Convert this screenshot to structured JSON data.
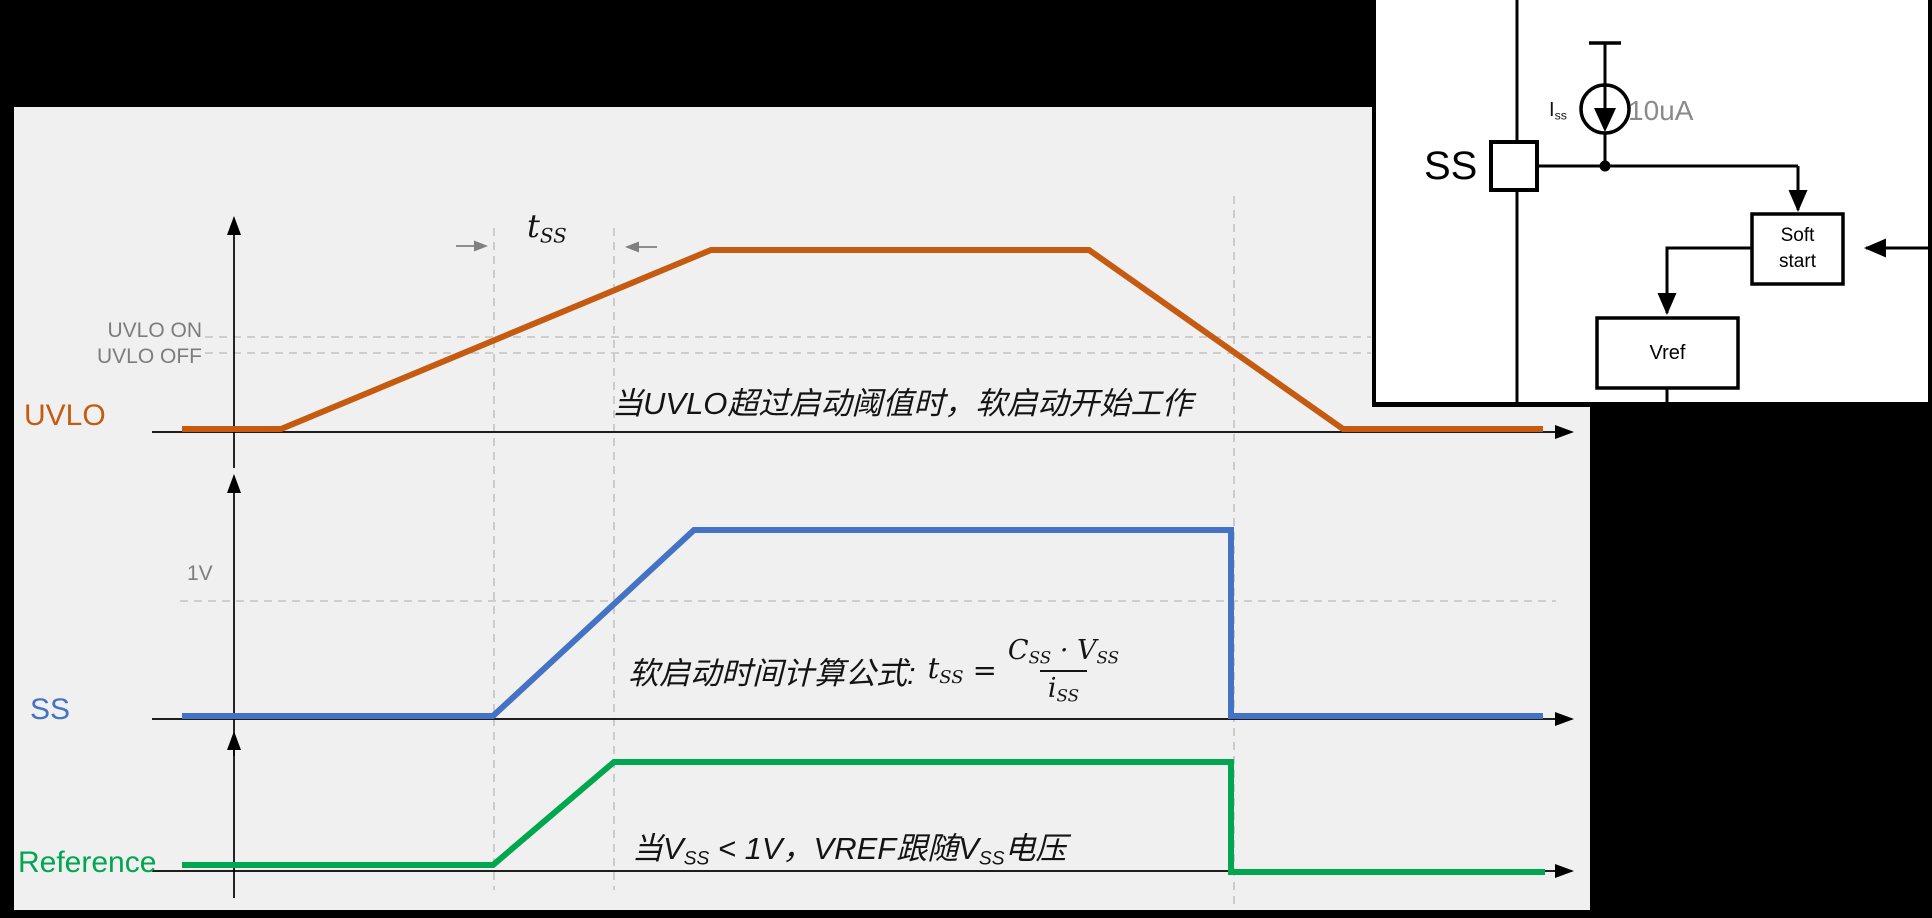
{
  "colors": {
    "page_bg": "#000000",
    "panel_bg": "#F0F0F0",
    "inset_bg": "#FFFFFF",
    "uvlo": "#C55A11",
    "ss": "#4472C4",
    "reference": "#00A650",
    "axis": "#000000",
    "dash": "#C2C2C2",
    "muted": "#7D7D7D",
    "dim_arrow": "#808080",
    "current": "#8A8A8A"
  },
  "timing": {
    "uvlo_label": "UVLO",
    "ss_label": "SS",
    "reference_label": "Reference",
    "uvlo_on": "UVLO ON",
    "uvlo_off": "UVLO OFF",
    "one_volt": "1V",
    "tss": {
      "base": "t",
      "sub": "SS"
    },
    "note_uvlo": "当UVLO超过启动阈值时，软启动开始工作",
    "note_ss_prefix": "软启动时间计算公式: ",
    "formula": {
      "lhs_base": "t",
      "lhs_sub": "SS",
      "equals": "=",
      "num_c": "C",
      "num_c_sub": "SS",
      "times": "·",
      "num_v": "V",
      "num_v_sub": "SS",
      "den_base": "i",
      "den_sub": "SS"
    },
    "note_ref": {
      "p1": "当V",
      "s1": "SS",
      "p2": " < 1V，VREF跟随V",
      "s2": "SS",
      "p3": "电压"
    }
  },
  "waveforms": {
    "uvlo": "182,429 281,429 711,250 1089,250 1343,429 1543,429",
    "ss": "182,716 493,716 694,530 1231,530 1231,716 1543,716",
    "reference": "182,865 493,865 614,762 1231,762 1231,872 1545,872"
  },
  "circuit": {
    "pin": "SS",
    "iss": {
      "base": "I",
      "sub": "ss"
    },
    "current_value": "10uA",
    "soft_start": {
      "line1": "Soft",
      "line2": "start"
    },
    "vref": "Vref"
  }
}
